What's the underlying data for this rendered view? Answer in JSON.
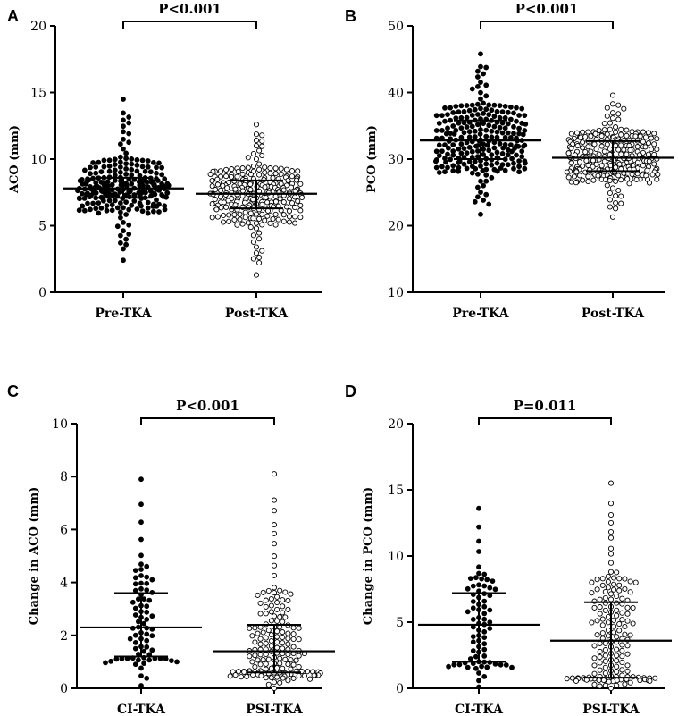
{
  "chart_data": [
    {
      "type": "scatter",
      "panel": "A",
      "ylabel": "ACO (mm)",
      "ylim": [
        0,
        20
      ],
      "yticks": [
        0,
        5,
        10,
        15,
        20
      ],
      "yticks_text": [
        "0",
        "5",
        "10",
        "15",
        "20"
      ],
      "categories": [
        "Pre-TKA",
        "Post-TKA"
      ],
      "pvalue": "P<0.001",
      "fill": [
        "filled",
        "open"
      ],
      "n": [
        240,
        240
      ],
      "summary": [
        {
          "median": 7.8,
          "q1": 7.1,
          "q3": 8.6,
          "min": 2.4,
          "max": 14.5
        },
        {
          "median": 7.4,
          "q1": 6.3,
          "q3": 8.4,
          "min": 1.3,
          "max": 12.6
        }
      ]
    },
    {
      "type": "scatter",
      "panel": "B",
      "ylabel": "PCO (mm)",
      "ylim": [
        10,
        50
      ],
      "yticks": [
        10,
        20,
        30,
        40,
        50
      ],
      "yticks_text": [
        "10",
        "20",
        "30",
        "40",
        "50"
      ],
      "categories": [
        "Pre-TKA",
        "Post-TKA"
      ],
      "pvalue": "P<0.001",
      "fill": [
        "filled",
        "open"
      ],
      "n": [
        240,
        240
      ],
      "summary": [
        {
          "median": 32.8,
          "q1": 30.0,
          "q3": 35.8,
          "min": 21.7,
          "max": 45.8
        },
        {
          "median": 30.2,
          "q1": 28.2,
          "q3": 32.7,
          "min": 21.3,
          "max": 39.6
        }
      ]
    },
    {
      "type": "scatter",
      "panel": "C",
      "ylabel": "Change in ACO (mm)",
      "ylim": [
        0,
        10
      ],
      "yticks": [
        0,
        2,
        4,
        6,
        8,
        10
      ],
      "yticks_text": [
        "0",
        "2",
        "4",
        "6",
        "8",
        "10"
      ],
      "categories": [
        "CI-TKA",
        "PSI-TKA"
      ],
      "pvalue": "P<0.001",
      "fill": [
        "filled",
        "open"
      ],
      "n": [
        75,
        160
      ],
      "summary": [
        {
          "median": 2.3,
          "q1": 1.2,
          "q3": 3.6,
          "min": 0.1,
          "max": 7.9
        },
        {
          "median": 1.4,
          "q1": 0.6,
          "q3": 2.4,
          "min": 0.0,
          "max": 8.1
        }
      ]
    },
    {
      "type": "scatter",
      "panel": "D",
      "ylabel": "Change in PCO (mm)",
      "ylim": [
        0,
        20
      ],
      "yticks": [
        0,
        5,
        10,
        15,
        20
      ],
      "yticks_text": [
        "0",
        "5",
        "10",
        "15",
        "20"
      ],
      "categories": [
        "CI-TKA",
        "PSI-TKA"
      ],
      "pvalue": "P=0.011",
      "fill": [
        "filled",
        "open"
      ],
      "n": [
        75,
        160
      ],
      "summary": [
        {
          "median": 4.8,
          "q1": 2.0,
          "q3": 7.2,
          "min": 0.1,
          "max": 13.6
        },
        {
          "median": 3.6,
          "q1": 0.8,
          "q3": 6.5,
          "min": 0.0,
          "max": 15.5
        }
      ]
    }
  ]
}
